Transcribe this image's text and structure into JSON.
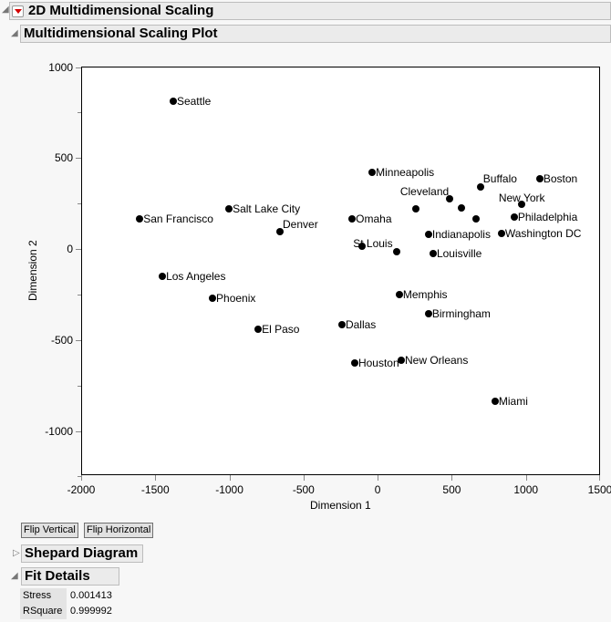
{
  "report": {
    "title": "2D Multidimensional Scaling",
    "plot_section_title": "Multidimensional Scaling Plot",
    "buttons": {
      "flip_vertical": "Flip Vertical",
      "flip_horizontal": "Flip Horizontal"
    },
    "shepard_title": "Shepard Diagram",
    "fit_details_title": "Fit Details",
    "fit_details": [
      {
        "label": "Stress",
        "value": "0.001413"
      },
      {
        "label": "RSquare",
        "value": "0.999992"
      }
    ]
  },
  "chart_data": {
    "type": "scatter",
    "title": "Multidimensional Scaling Plot",
    "xlabel": "Dimension 1",
    "ylabel": "Dimension 2",
    "xlim": [
      -2000,
      1500
    ],
    "ylim": [
      -1250,
      1000
    ],
    "x_ticks": [
      "-2000",
      "-1500",
      "-1000",
      "-500",
      "0",
      "500",
      "1000",
      "1500"
    ],
    "y_ticks": [
      "1000",
      "500",
      "0",
      "-500",
      "-1000"
    ],
    "grid": false,
    "points": [
      {
        "label": "Seattle",
        "x": -1379,
        "y": 812
      },
      {
        "label": "San Francisco",
        "x": -1605,
        "y": 165
      },
      {
        "label": "Salt Lake City",
        "x": -1003,
        "y": 220
      },
      {
        "label": "Denver",
        "x": -659,
        "y": 95
      },
      {
        "label": "Los Angeles",
        "x": -1452,
        "y": -150
      },
      {
        "label": "Phoenix",
        "x": -1114,
        "y": -271
      },
      {
        "label": "El Paso",
        "x": -806,
        "y": -441
      },
      {
        "label": "Omaha",
        "x": -172,
        "y": 165
      },
      {
        "label": "Minneapolis",
        "x": -37,
        "y": 421
      },
      {
        "label": "St Louis",
        "x": -104,
        "y": 15
      },
      {
        "label": "",
        "x": 129,
        "y": -15
      },
      {
        "label": "",
        "x": 256,
        "y": 220
      },
      {
        "label": "Cleveland",
        "x": 484,
        "y": 276
      },
      {
        "label": "",
        "x": 564,
        "y": 225
      },
      {
        "label": "",
        "x": 662,
        "y": 165
      },
      {
        "label": "Buffalo",
        "x": 693,
        "y": 341
      },
      {
        "label": "Boston",
        "x": 1093,
        "y": 386
      },
      {
        "label": "New York",
        "x": 970,
        "y": 245
      },
      {
        "label": "Philadelphia",
        "x": 921,
        "y": 175
      },
      {
        "label": "Washington DC",
        "x": 835,
        "y": 85
      },
      {
        "label": "Indianapolis",
        "x": 343,
        "y": 80
      },
      {
        "label": "Louisville",
        "x": 374,
        "y": -25
      },
      {
        "label": "Memphis",
        "x": 146,
        "y": -251
      },
      {
        "label": "Birmingham",
        "x": 343,
        "y": -356
      },
      {
        "label": "Dallas",
        "x": -241,
        "y": -416
      },
      {
        "label": "Houston",
        "x": -155,
        "y": -627
      },
      {
        "label": "New Orleans",
        "x": 159,
        "y": -612
      },
      {
        "label": "Miami",
        "x": 792,
        "y": -837
      }
    ]
  }
}
